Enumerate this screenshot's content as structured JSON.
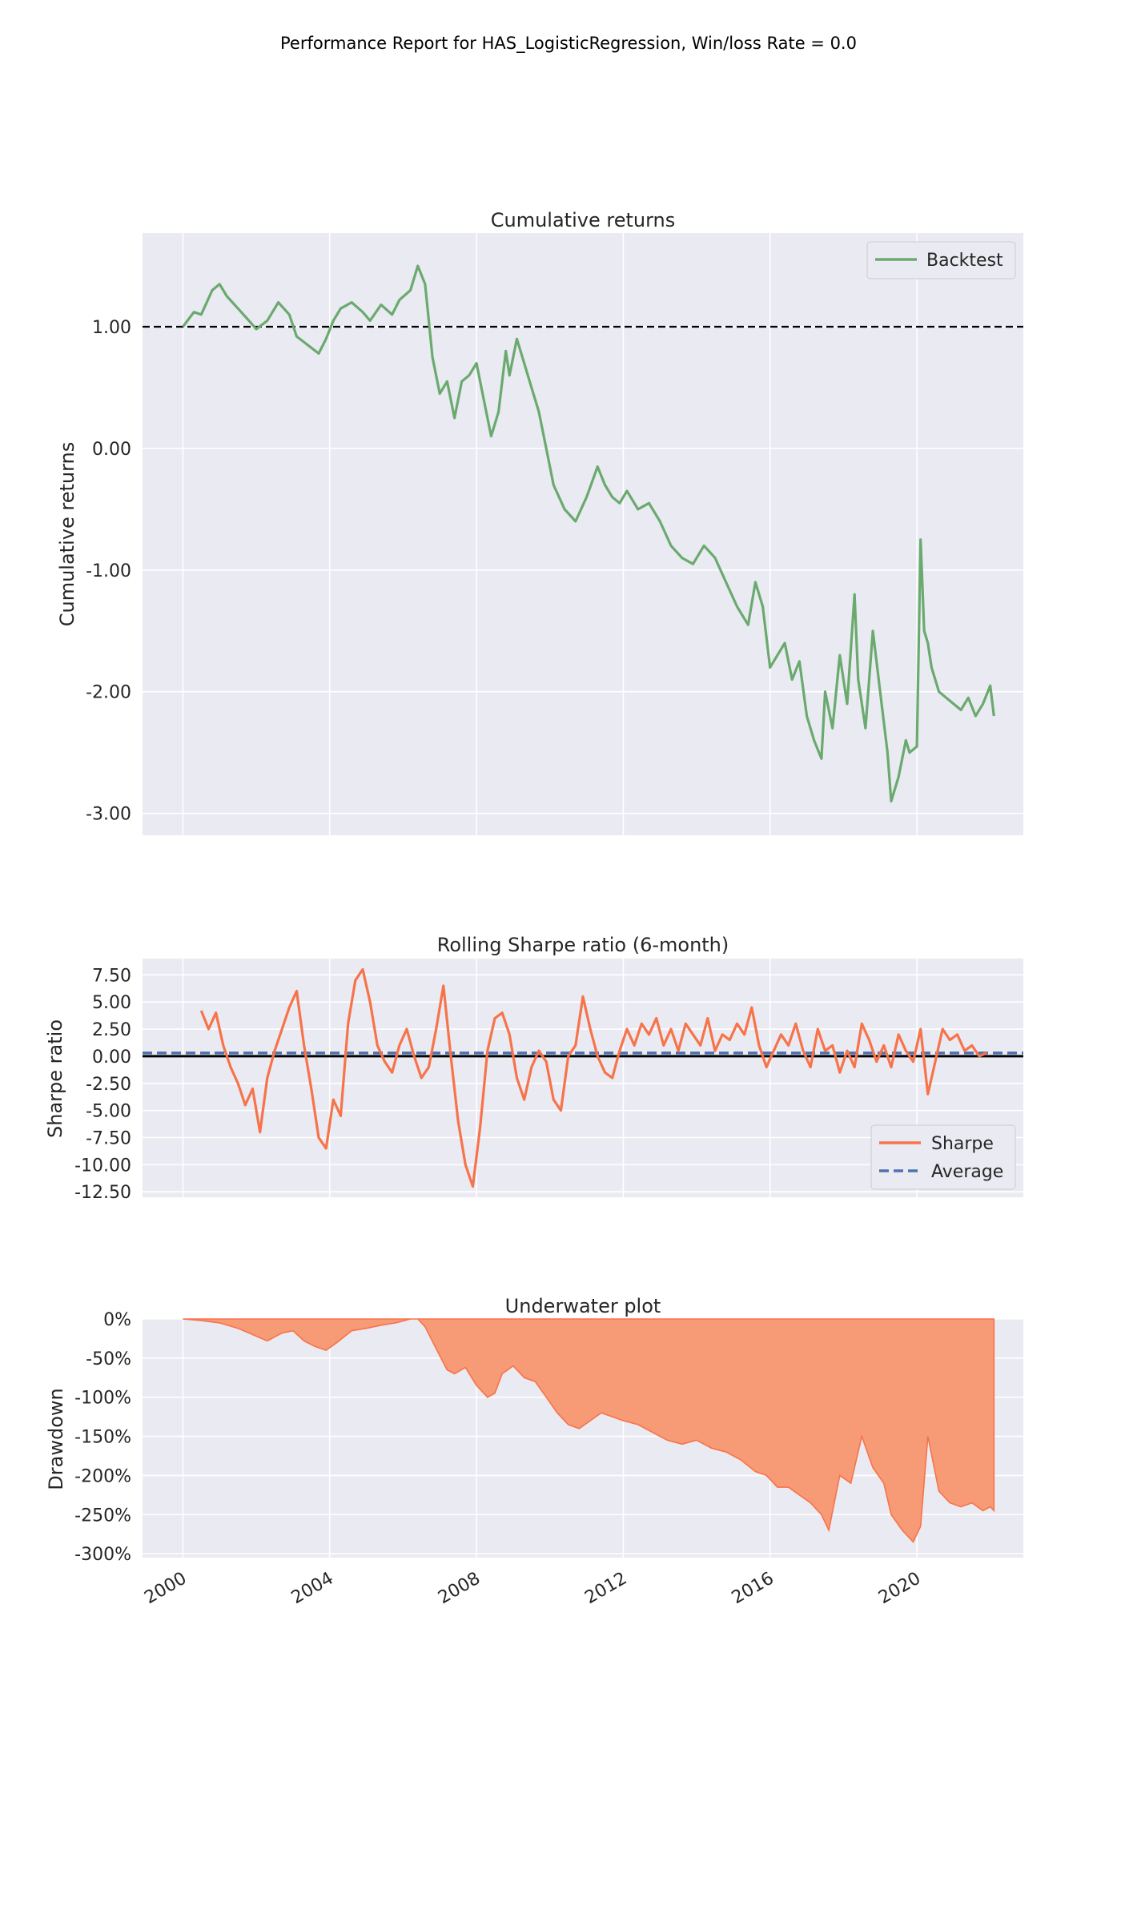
{
  "figure": {
    "suptitle": "Performance Report for HAS_LogisticRegression, Win/loss Rate = 0.0",
    "x_tick_labels": [
      "2000",
      "2004",
      "2008",
      "2012",
      "2016",
      "2020"
    ],
    "x_ticks": [
      2000,
      2004,
      2008,
      2012,
      2016,
      2020
    ],
    "x_range": [
      1998.9,
      2022.9
    ]
  },
  "colors": {
    "background": "#eaeaf2",
    "grid": "#ffffff",
    "returns_line": "#6aaa6e",
    "sharpe_line": "#f7734a",
    "average_line": "#4c72b0",
    "drawdown_fill": "#f79a76",
    "drawdown_edge": "#f7734a"
  },
  "chart_data": [
    {
      "type": "line",
      "title": "Cumulative returns",
      "xlabel": "",
      "ylabel": "Cumulative returns",
      "ylim": [
        -3.18,
        1.77
      ],
      "yticks": [
        1.0,
        0.0,
        -1.0,
        -2.0,
        -3.0
      ],
      "ytick_labels": [
        "1.00",
        "0.00",
        "-1.00",
        "-2.00",
        "-3.00"
      ],
      "reference_line": 1.0,
      "legend": "top-right",
      "grid": true,
      "series": [
        {
          "name": "Backtest",
          "x": [
            2000.0,
            2000.3,
            2000.5,
            2000.8,
            2001.0,
            2001.2,
            2001.5,
            2001.8,
            2002.0,
            2002.3,
            2002.6,
            2002.9,
            2003.1,
            2003.4,
            2003.7,
            2003.9,
            2004.1,
            2004.3,
            2004.6,
            2004.9,
            2005.1,
            2005.4,
            2005.7,
            2005.9,
            2006.2,
            2006.4,
            2006.6,
            2006.8,
            2007.0,
            2007.2,
            2007.4,
            2007.6,
            2007.8,
            2008.0,
            2008.2,
            2008.4,
            2008.6,
            2008.8,
            2008.9,
            2009.1,
            2009.3,
            2009.5,
            2009.7,
            2009.9,
            2010.1,
            2010.4,
            2010.7,
            2011.0,
            2011.3,
            2011.5,
            2011.7,
            2011.9,
            2012.1,
            2012.4,
            2012.7,
            2013.0,
            2013.3,
            2013.6,
            2013.9,
            2014.2,
            2014.5,
            2014.8,
            2015.1,
            2015.4,
            2015.6,
            2015.8,
            2016.0,
            2016.2,
            2016.4,
            2016.6,
            2016.8,
            2017.0,
            2017.2,
            2017.4,
            2017.5,
            2017.7,
            2017.9,
            2018.1,
            2018.3,
            2018.4,
            2018.6,
            2018.8,
            2019.0,
            2019.2,
            2019.3,
            2019.5,
            2019.7,
            2019.8,
            2020.0,
            2020.1,
            2020.2,
            2020.3,
            2020.4,
            2020.6,
            2020.8,
            2021.0,
            2021.2,
            2021.4,
            2021.6,
            2021.8,
            2022.0,
            2022.1
          ],
          "y": [
            1.0,
            1.12,
            1.1,
            1.3,
            1.35,
            1.25,
            1.15,
            1.05,
            0.98,
            1.05,
            1.2,
            1.1,
            0.92,
            0.85,
            0.78,
            0.9,
            1.05,
            1.15,
            1.2,
            1.12,
            1.05,
            1.18,
            1.1,
            1.22,
            1.3,
            1.5,
            1.35,
            0.75,
            0.45,
            0.55,
            0.25,
            0.55,
            0.6,
            0.7,
            0.4,
            0.1,
            0.3,
            0.8,
            0.6,
            0.9,
            0.7,
            0.5,
            0.3,
            0.0,
            -0.3,
            -0.5,
            -0.6,
            -0.4,
            -0.15,
            -0.3,
            -0.4,
            -0.45,
            -0.35,
            -0.5,
            -0.45,
            -0.6,
            -0.8,
            -0.9,
            -0.95,
            -0.8,
            -0.9,
            -1.1,
            -1.3,
            -1.45,
            -1.1,
            -1.3,
            -1.8,
            -1.7,
            -1.6,
            -1.9,
            -1.75,
            -2.2,
            -2.4,
            -2.55,
            -2.0,
            -2.3,
            -1.7,
            -2.1,
            -1.2,
            -1.9,
            -2.3,
            -1.5,
            -2.0,
            -2.5,
            -2.9,
            -2.7,
            -2.4,
            -2.5,
            -2.45,
            -0.75,
            -1.5,
            -1.6,
            -1.8,
            -2.0,
            -2.05,
            -2.1,
            -2.15,
            -2.05,
            -2.2,
            -2.1,
            -1.95,
            -2.2
          ]
        }
      ]
    },
    {
      "type": "line",
      "title": "Rolling Sharpe ratio (6-month)",
      "xlabel": "",
      "ylabel": "Sharpe ratio",
      "ylim": [
        -13.0,
        9.0
      ],
      "yticks": [
        7.5,
        5.0,
        2.5,
        0.0,
        -2.5,
        -5.0,
        -7.5,
        -10.0,
        -12.5
      ],
      "ytick_labels": [
        "7.50",
        "5.00",
        "2.50",
        "0.00",
        "-2.50",
        "-5.00",
        "-7.50",
        "-10.00",
        "-12.50"
      ],
      "zero_line": 0.0,
      "legend": "bottom-right",
      "grid": true,
      "series": [
        {
          "name": "Sharpe",
          "x": [
            2000.5,
            2000.7,
            2000.9,
            2001.1,
            2001.3,
            2001.5,
            2001.7,
            2001.9,
            2002.1,
            2002.3,
            2002.5,
            2002.7,
            2002.9,
            2003.1,
            2003.3,
            2003.5,
            2003.7,
            2003.9,
            2004.1,
            2004.3,
            2004.5,
            2004.7,
            2004.9,
            2005.1,
            2005.3,
            2005.5,
            2005.7,
            2005.9,
            2006.1,
            2006.3,
            2006.5,
            2006.7,
            2006.9,
            2007.1,
            2007.3,
            2007.5,
            2007.7,
            2007.9,
            2008.1,
            2008.3,
            2008.5,
            2008.7,
            2008.9,
            2009.1,
            2009.3,
            2009.5,
            2009.7,
            2009.9,
            2010.1,
            2010.3,
            2010.5,
            2010.7,
            2010.9,
            2011.1,
            2011.3,
            2011.5,
            2011.7,
            2011.9,
            2012.1,
            2012.3,
            2012.5,
            2012.7,
            2012.9,
            2013.1,
            2013.3,
            2013.5,
            2013.7,
            2013.9,
            2014.1,
            2014.3,
            2014.5,
            2014.7,
            2014.9,
            2015.1,
            2015.3,
            2015.5,
            2015.7,
            2015.9,
            2016.1,
            2016.3,
            2016.5,
            2016.7,
            2016.9,
            2017.1,
            2017.3,
            2017.5,
            2017.7,
            2017.9,
            2018.1,
            2018.3,
            2018.5,
            2018.7,
            2018.9,
            2019.1,
            2019.3,
            2019.5,
            2019.7,
            2019.9,
            2020.1,
            2020.3,
            2020.5,
            2020.7,
            2020.9,
            2021.1,
            2021.3,
            2021.5,
            2021.7,
            2021.9
          ],
          "y": [
            4.2,
            2.5,
            4.0,
            1.0,
            -1.0,
            -2.5,
            -4.5,
            -3.0,
            -7.0,
            -2.0,
            0.5,
            2.5,
            4.5,
            6.0,
            1.0,
            -3.0,
            -7.5,
            -8.5,
            -4.0,
            -5.5,
            3.0,
            7.0,
            8.0,
            5.0,
            1.0,
            -0.5,
            -1.5,
            1.0,
            2.5,
            0.0,
            -2.0,
            -1.0,
            2.5,
            6.5,
            0.0,
            -6.0,
            -10.0,
            -12.0,
            -6.5,
            0.5,
            3.5,
            4.0,
            2.0,
            -2.0,
            -4.0,
            -1.0,
            0.5,
            -0.5,
            -4.0,
            -5.0,
            0.0,
            1.0,
            5.5,
            2.5,
            0.0,
            -1.5,
            -2.0,
            0.5,
            2.5,
            1.0,
            3.0,
            2.0,
            3.5,
            1.0,
            2.5,
            0.5,
            3.0,
            2.0,
            1.0,
            3.5,
            0.5,
            2.0,
            1.5,
            3.0,
            2.0,
            4.5,
            1.0,
            -1.0,
            0.5,
            2.0,
            1.0,
            3.0,
            0.5,
            -1.0,
            2.5,
            0.5,
            1.0,
            -1.5,
            0.5,
            -1.0,
            3.0,
            1.5,
            -0.5,
            1.0,
            -1.0,
            2.0,
            0.5,
            -0.5,
            2.5,
            -3.5,
            -0.5,
            2.5,
            1.5,
            2.0,
            0.5,
            1.0,
            0.0,
            0.3
          ]
        },
        {
          "name": "Average",
          "x": [
            2000.5,
            2021.9
          ],
          "y": [
            0.3,
            0.3
          ]
        }
      ]
    },
    {
      "type": "area",
      "title": "Underwater plot",
      "xlabel": "",
      "ylabel": "Drawdown",
      "ylim": [
        -305,
        0
      ],
      "yticks": [
        0,
        -50,
        -100,
        -150,
        -200,
        -250,
        -300
      ],
      "ytick_labels": [
        "0%",
        "-50%",
        "-100%",
        "-150%",
        "-200%",
        "-250%",
        "-300%"
      ],
      "grid": true,
      "series": [
        {
          "x": [
            2000.0,
            2000.5,
            2001.0,
            2001.5,
            2002.0,
            2002.3,
            2002.7,
            2003.0,
            2003.3,
            2003.6,
            2003.9,
            2004.2,
            2004.6,
            2005.0,
            2005.4,
            2005.8,
            2006.2,
            2006.4,
            2006.6,
            2006.9,
            2007.2,
            2007.4,
            2007.7,
            2008.0,
            2008.3,
            2008.5,
            2008.7,
            2009.0,
            2009.3,
            2009.6,
            2009.9,
            2010.2,
            2010.5,
            2010.8,
            2011.1,
            2011.4,
            2011.7,
            2012.0,
            2012.4,
            2012.8,
            2013.2,
            2013.6,
            2014.0,
            2014.4,
            2014.8,
            2015.2,
            2015.6,
            2015.9,
            2016.2,
            2016.5,
            2016.8,
            2017.1,
            2017.4,
            2017.6,
            2017.9,
            2018.2,
            2018.5,
            2018.8,
            2019.1,
            2019.3,
            2019.6,
            2019.9,
            2020.1,
            2020.3,
            2020.6,
            2020.9,
            2021.2,
            2021.5,
            2021.8,
            2022.0,
            2022.1
          ],
          "y": [
            0,
            -2,
            -5,
            -12,
            -22,
            -28,
            -18,
            -15,
            -28,
            -35,
            -40,
            -30,
            -15,
            -12,
            -8,
            -5,
            0,
            0,
            -10,
            -38,
            -65,
            -70,
            -62,
            -85,
            -100,
            -95,
            -70,
            -60,
            -75,
            -80,
            -100,
            -120,
            -135,
            -140,
            -130,
            -120,
            -125,
            -130,
            -135,
            -145,
            -155,
            -160,
            -155,
            -165,
            -170,
            -180,
            -195,
            -200,
            -215,
            -215,
            -225,
            -235,
            -250,
            -270,
            -200,
            -210,
            -150,
            -190,
            -210,
            -250,
            -270,
            -285,
            -265,
            -150,
            -220,
            -235,
            -240,
            -235,
            -245,
            -240,
            -245
          ]
        }
      ]
    }
  ]
}
